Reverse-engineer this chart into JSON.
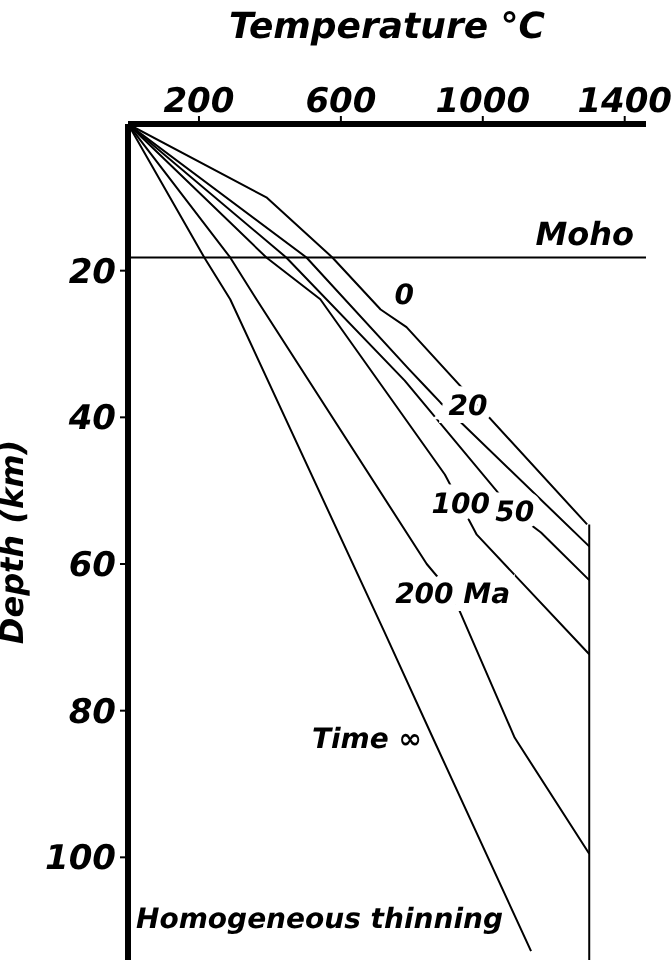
{
  "chart_data": {
    "type": "line",
    "xlabel": "Temperature °C",
    "ylabel": "Depth (km)",
    "xlim": [
      0,
      1460
    ],
    "xticks": [
      200,
      600,
      1000,
      1400
    ],
    "ylim": [
      114,
      0
    ],
    "yticks": [
      20,
      40,
      60,
      80,
      100
    ],
    "grid": false,
    "legend": false,
    "marker": "none",
    "line_style": "solid",
    "ref_lines": [
      {
        "axis": "y",
        "value": 18.2,
        "label": "Moho",
        "color": "#000000"
      }
    ],
    "annotations": [
      "Homogeneous thinning"
    ],
    "series": [
      {
        "name": "0",
        "color": "#000000",
        "x": [
          0,
          390,
          576,
          712,
          785,
          1294
        ],
        "values": [
          0,
          10,
          18.2,
          25.3,
          27.7,
          54.6
        ]
      },
      {
        "name": "20",
        "color": "#000000",
        "x": [
          0,
          503,
          791,
          842,
          881,
          1300
        ],
        "values": [
          0,
          18.2,
          33.4,
          36,
          38,
          57.6
        ]
      },
      {
        "name": "50",
        "color": "#000000",
        "x": [
          0,
          446,
          780,
          1090,
          1164,
          1300
        ],
        "values": [
          0,
          18.2,
          35,
          53,
          55.7,
          62.2
        ]
      },
      {
        "name": "100",
        "color": "#000000",
        "x": [
          0,
          390,
          542,
          893,
          938,
          983,
          1300
        ],
        "values": [
          0,
          18.2,
          23.9,
          47.8,
          51.9,
          56,
          72.3
        ]
      },
      {
        "name": "200 Ma",
        "color": "#000000",
        "x": [
          0,
          288,
          362,
          842,
          915,
          1090,
          1300
        ],
        "values": [
          0,
          18.2,
          23.9,
          60,
          64.2,
          83.7,
          99.5
        ]
      },
      {
        "name": "Time ∞",
        "color": "#000000",
        "x": [
          0,
          215,
          288,
          723,
          862,
          1136
        ],
        "values": [
          0,
          18.2,
          23.9,
          69.3,
          84,
          112.8
        ]
      },
      {
        "color": "#000000",
        "x": [
          1300,
          1300
        ],
        "values": [
          54.6,
          114
        ]
      }
    ]
  }
}
